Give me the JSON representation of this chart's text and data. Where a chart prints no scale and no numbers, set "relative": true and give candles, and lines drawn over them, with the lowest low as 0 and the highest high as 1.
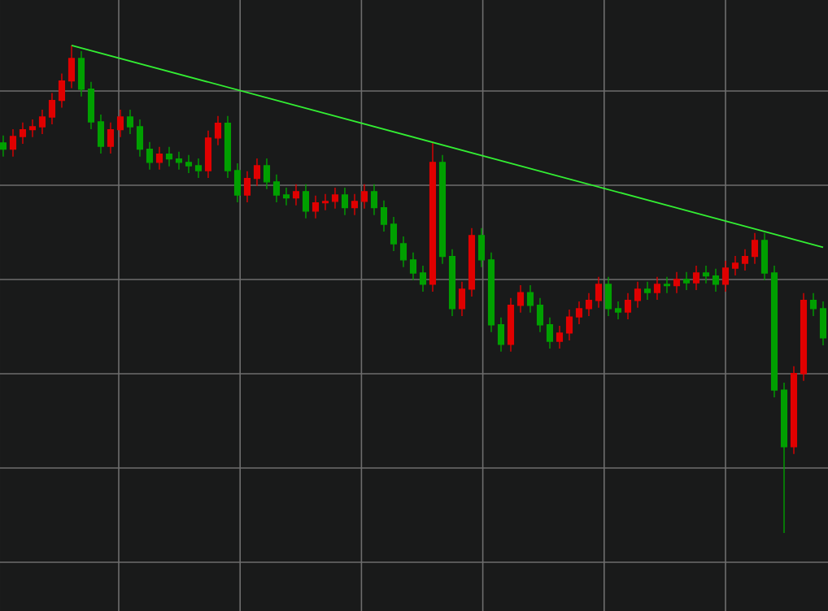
{
  "chart_data": {
    "type": "candlestick",
    "relative": true,
    "grid": true,
    "categories": [
      null,
      null,
      null,
      null,
      null,
      null,
      null,
      null,
      null,
      null,
      null,
      null,
      null,
      null,
      null,
      null,
      null,
      null,
      null,
      null,
      null,
      null,
      null,
      null,
      null,
      null,
      null,
      null,
      null,
      null,
      null,
      null,
      null,
      null,
      null,
      null,
      null,
      null,
      null,
      null,
      null,
      null,
      null,
      null,
      null,
      null,
      null,
      null,
      null,
      null,
      null,
      null,
      null,
      null,
      null,
      null,
      null,
      null,
      null,
      null,
      null,
      null,
      null,
      null,
      null,
      null,
      null,
      null,
      null,
      null,
      null,
      null,
      null,
      null,
      null,
      null,
      null,
      null,
      null,
      null,
      null,
      null,
      null,
      null,
      null
    ],
    "ohlc": [
      [
        0.8,
        0.815,
        0.772,
        0.787
      ],
      [
        0.787,
        0.828,
        0.772,
        0.813
      ],
      [
        0.813,
        0.842,
        0.798,
        0.827
      ],
      [
        0.827,
        0.848,
        0.812,
        0.833
      ],
      [
        0.833,
        0.868,
        0.818,
        0.853
      ],
      [
        0.853,
        0.902,
        0.838,
        0.887
      ],
      [
        0.887,
        0.942,
        0.872,
        0.927
      ],
      [
        0.927,
        1.0,
        0.912,
        0.973
      ],
      [
        0.973,
        0.988,
        0.895,
        0.91
      ],
      [
        0.91,
        0.925,
        0.828,
        0.843
      ],
      [
        0.843,
        0.858,
        0.778,
        0.793
      ],
      [
        0.793,
        0.842,
        0.778,
        0.827
      ],
      [
        0.827,
        0.868,
        0.812,
        0.853
      ],
      [
        0.853,
        0.868,
        0.818,
        0.833
      ],
      [
        0.833,
        0.848,
        0.772,
        0.787
      ],
      [
        0.787,
        0.802,
        0.745,
        0.76
      ],
      [
        0.76,
        0.792,
        0.745,
        0.777
      ],
      [
        0.777,
        0.792,
        0.752,
        0.767
      ],
      [
        0.767,
        0.782,
        0.745,
        0.76
      ],
      [
        0.76,
        0.775,
        0.738,
        0.753
      ],
      [
        0.753,
        0.768,
        0.728,
        0.743
      ],
      [
        0.743,
        0.825,
        0.728,
        0.81
      ],
      [
        0.81,
        0.855,
        0.795,
        0.84
      ],
      [
        0.84,
        0.855,
        0.728,
        0.743
      ],
      [
        0.743,
        0.758,
        0.678,
        0.693
      ],
      [
        0.693,
        0.742,
        0.678,
        0.727
      ],
      [
        0.727,
        0.768,
        0.712,
        0.753
      ],
      [
        0.753,
        0.768,
        0.705,
        0.72
      ],
      [
        0.72,
        0.735,
        0.678,
        0.693
      ],
      [
        0.693,
        0.708,
        0.672,
        0.687
      ],
      [
        0.687,
        0.715,
        0.672,
        0.7
      ],
      [
        0.7,
        0.715,
        0.645,
        0.66
      ],
      [
        0.66,
        0.692,
        0.645,
        0.677
      ],
      [
        0.677,
        0.695,
        0.662,
        0.68
      ],
      [
        0.68,
        0.708,
        0.665,
        0.693
      ],
      [
        0.693,
        0.708,
        0.652,
        0.667
      ],
      [
        0.667,
        0.695,
        0.652,
        0.68
      ],
      [
        0.68,
        0.715,
        0.665,
        0.7
      ],
      [
        0.7,
        0.715,
        0.652,
        0.667
      ],
      [
        0.667,
        0.682,
        0.618,
        0.633
      ],
      [
        0.633,
        0.648,
        0.578,
        0.593
      ],
      [
        0.593,
        0.608,
        0.545,
        0.56
      ],
      [
        0.56,
        0.575,
        0.518,
        0.533
      ],
      [
        0.533,
        0.548,
        0.495,
        0.51
      ],
      [
        0.51,
        0.8,
        0.495,
        0.76
      ],
      [
        0.76,
        0.775,
        0.552,
        0.567
      ],
      [
        0.567,
        0.582,
        0.445,
        0.46
      ],
      [
        0.46,
        0.515,
        0.445,
        0.5
      ],
      [
        0.5,
        0.625,
        0.485,
        0.61
      ],
      [
        0.61,
        0.625,
        0.545,
        0.56
      ],
      [
        0.56,
        0.575,
        0.412,
        0.427
      ],
      [
        0.427,
        0.442,
        0.372,
        0.387
      ],
      [
        0.387,
        0.482,
        0.372,
        0.467
      ],
      [
        0.467,
        0.508,
        0.452,
        0.493
      ],
      [
        0.493,
        0.508,
        0.452,
        0.467
      ],
      [
        0.467,
        0.482,
        0.412,
        0.427
      ],
      [
        0.427,
        0.442,
        0.378,
        0.393
      ],
      [
        0.393,
        0.425,
        0.378,
        0.41
      ],
      [
        0.41,
        0.458,
        0.395,
        0.443
      ],
      [
        0.443,
        0.475,
        0.428,
        0.46
      ],
      [
        0.46,
        0.492,
        0.445,
        0.477
      ],
      [
        0.477,
        0.525,
        0.462,
        0.51
      ],
      [
        0.51,
        0.525,
        0.445,
        0.46
      ],
      [
        0.46,
        0.475,
        0.438,
        0.453
      ],
      [
        0.453,
        0.492,
        0.438,
        0.477
      ],
      [
        0.477,
        0.515,
        0.462,
        0.5
      ],
      [
        0.5,
        0.515,
        0.478,
        0.493
      ],
      [
        0.493,
        0.525,
        0.478,
        0.51
      ],
      [
        0.51,
        0.525,
        0.492,
        0.507
      ],
      [
        0.507,
        0.535,
        0.492,
        0.52
      ],
      [
        0.52,
        0.535,
        0.498,
        0.513
      ],
      [
        0.513,
        0.548,
        0.498,
        0.533
      ],
      [
        0.533,
        0.548,
        0.512,
        0.527
      ],
      [
        0.527,
        0.542,
        0.495,
        0.51
      ],
      [
        0.51,
        0.558,
        0.495,
        0.543
      ],
      [
        0.543,
        0.568,
        0.528,
        0.553
      ],
      [
        0.553,
        0.582,
        0.538,
        0.567
      ],
      [
        0.567,
        0.615,
        0.552,
        0.6
      ],
      [
        0.6,
        0.615,
        0.518,
        0.533
      ],
      [
        0.533,
        0.548,
        0.278,
        0.293
      ],
      [
        0.293,
        0.308,
        0.0,
        0.177
      ],
      [
        0.177,
        0.342,
        0.162,
        0.327
      ],
      [
        0.327,
        0.492,
        0.312,
        0.477
      ],
      [
        0.477,
        0.492,
        0.445,
        0.46
      ],
      [
        0.46,
        0.475,
        0.385,
        0.4
      ]
    ],
    "colors": [
      "#00a000",
      "#e00000",
      "#e00000",
      "#e00000",
      "#e00000",
      "#e00000",
      "#e00000",
      "#e00000",
      "#00a000",
      "#00a000",
      "#00a000",
      "#e00000",
      "#e00000",
      "#00a000",
      "#00a000",
      "#00a000",
      "#e00000",
      "#00a000",
      "#00a000",
      "#00a000",
      "#00a000",
      "#e00000",
      "#e00000",
      "#00a000",
      "#00a000",
      "#e00000",
      "#e00000",
      "#00a000",
      "#00a000",
      "#00a000",
      "#e00000",
      "#00a000",
      "#e00000",
      "#e00000",
      "#e00000",
      "#00a000",
      "#e00000",
      "#e00000",
      "#00a000",
      "#00a000",
      "#00a000",
      "#00a000",
      "#00a000",
      "#00a000",
      "#e00000",
      "#00a000",
      "#00a000",
      "#e00000",
      "#e00000",
      "#00a000",
      "#00a000",
      "#00a000",
      "#e00000",
      "#e00000",
      "#00a000",
      "#00a000",
      "#00a000",
      "#e00000",
      "#e00000",
      "#e00000",
      "#e00000",
      "#e00000",
      "#00a000",
      "#00a000",
      "#e00000",
      "#e00000",
      "#00a000",
      "#e00000",
      "#00a000",
      "#e00000",
      "#00a000",
      "#e00000",
      "#00a000",
      "#00a000",
      "#e00000",
      "#e00000",
      "#e00000",
      "#e00000",
      "#00a000",
      "#00a000",
      "#00a000",
      "#e00000",
      "#e00000",
      "#00a000",
      "#00a000"
    ],
    "series": [
      {
        "type": "line",
        "color": "#33ee33",
        "values": [
          null,
          null,
          null,
          null,
          null,
          null,
          null,
          1.0,
          null,
          null,
          null,
          null,
          null,
          null,
          null,
          null,
          null,
          null,
          null,
          null,
          null,
          null,
          null,
          null,
          null,
          null,
          null,
          null,
          null,
          null,
          null,
          null,
          null,
          null,
          null,
          null,
          null,
          null,
          null,
          null,
          null,
          null,
          null,
          null,
          null,
          null,
          null,
          null,
          null,
          null,
          null,
          null,
          null,
          null,
          null,
          null,
          null,
          null,
          null,
          null,
          null,
          null,
          null,
          null,
          null,
          null,
          null,
          null,
          null,
          null,
          null,
          null,
          null,
          null,
          null,
          null,
          null,
          null,
          null,
          null,
          null,
          null,
          null,
          null,
          0.586
        ]
      }
    ]
  }
}
